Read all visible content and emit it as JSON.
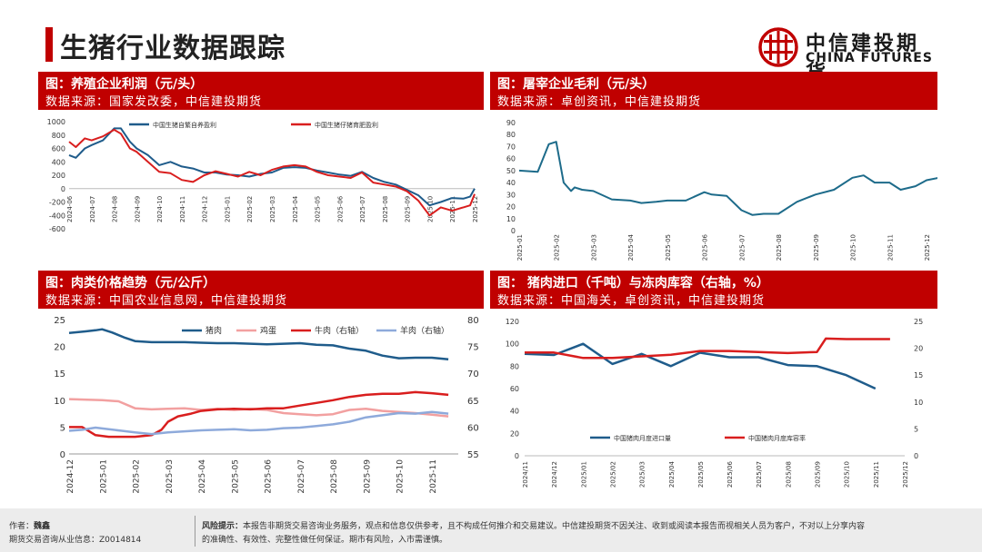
{
  "page": {
    "title": "生猪行业数据跟踪"
  },
  "logo": {
    "cn": "中信建投期货",
    "en": "CHINA FUTURES"
  },
  "colors": {
    "brand_red": "#c00000",
    "navy": "#1f5c8b",
    "teal": "#1d6b8a",
    "pink": "#f2a0a0",
    "red": "#d91e1e",
    "lightblue": "#8eaadb"
  },
  "panels": [
    {
      "title": "图：养殖企业利润（元/头）",
      "source": "数据来源：国家发改委，中信建投期货"
    },
    {
      "title": "图：屠宰企业毛利（元/头）",
      "source": "数据来源：卓创资讯，中信建投期货"
    },
    {
      "title": "图：肉类价格趋势（元/公斤）",
      "source": "数据来源：中国农业信息网，中信建投期货"
    },
    {
      "title": "图： 猪肉进口（千吨）与冻肉库容（右轴，%）",
      "source": "数据来源：中国海关，卓创资讯，中信建投期货"
    }
  ],
  "footer": {
    "author_label": "作者：",
    "author_name": "魏鑫",
    "license": "期货交易咨询从业信息：Z0014814",
    "risk_label": "风险提示：",
    "risk_text_1": "本报告非期货交易咨询业务服务，观点和信息仅供参考，且不构成任何推介和交易建议。中信建投期货不因关注、收到或阅读本报告而视相关人员为客户，不对以上分享内容",
    "risk_text_2": "的准确性、有效性、完整性做任何保证。期市有风险，入市需谨慎。"
  },
  "chart_data": [
    {
      "type": "line",
      "x_ticks": [
        "2024-06",
        "2024-07",
        "2024-08",
        "2024-09",
        "2024-10",
        "2024-11",
        "2024-12",
        "2025-01",
        "2025-02",
        "2025-03",
        "2025-04",
        "2025-05",
        "2025-06",
        "2025-07",
        "2025-08",
        "2025-09",
        "2025-10",
        "2025-11",
        "2025-12"
      ],
      "y_ticks": [
        1000,
        800,
        600,
        400,
        200,
        0,
        -200,
        -400,
        -600
      ],
      "ylim": [
        -600,
        1000
      ],
      "series": [
        {
          "name": "中国生猪自繁自养盈利",
          "color": "#1f5c8b",
          "x": [
            0,
            0.3,
            0.7,
            1,
            1.5,
            2,
            2.3,
            2.7,
            3,
            3.5,
            4,
            4.5,
            5,
            5.5,
            6,
            6.5,
            7,
            7.5,
            8,
            8.5,
            9,
            9.5,
            10,
            10.5,
            11,
            11.5,
            12,
            12.5,
            13,
            13.5,
            14,
            14.5,
            15,
            15.5,
            16,
            16.5,
            17,
            17.5,
            17.8,
            18
          ],
          "values": [
            500,
            460,
            600,
            650,
            720,
            900,
            900,
            700,
            600,
            500,
            350,
            400,
            330,
            300,
            240,
            240,
            210,
            200,
            180,
            220,
            240,
            310,
            320,
            310,
            270,
            240,
            210,
            190,
            250,
            160,
            100,
            60,
            -20,
            -100,
            -250,
            -200,
            -140,
            -150,
            -120,
            0
          ]
        },
        {
          "name": "中国生猪仔猪育肥盈利",
          "color": "#d91e1e",
          "x": [
            0,
            0.3,
            0.7,
            1,
            1.5,
            2,
            2.3,
            2.7,
            3,
            3.5,
            4,
            4.5,
            5,
            5.5,
            6,
            6.5,
            7,
            7.5,
            8,
            8.5,
            9,
            9.5,
            10,
            10.5,
            11,
            11.5,
            12,
            12.5,
            13,
            13.5,
            14,
            14.5,
            15,
            15.5,
            16,
            16.5,
            17,
            17.5,
            17.8,
            18
          ],
          "values": [
            700,
            620,
            750,
            720,
            780,
            880,
            820,
            600,
            550,
            400,
            250,
            230,
            130,
            100,
            200,
            260,
            220,
            180,
            250,
            200,
            280,
            330,
            350,
            330,
            250,
            200,
            180,
            160,
            240,
            90,
            60,
            30,
            -40,
            -180,
            -400,
            -280,
            -330,
            -280,
            -250,
            -80
          ]
        }
      ]
    },
    {
      "type": "line",
      "x_ticks": [
        "2025-01",
        "2025-02",
        "2025-03",
        "2025-04",
        "2025-05",
        "2025-06",
        "2025-07",
        "2025-08",
        "2025-09",
        "2025-10",
        "2025-11",
        "2025-12"
      ],
      "y_ticks": [
        90,
        80,
        70,
        60,
        50,
        40,
        30,
        20,
        10,
        0
      ],
      "ylim": [
        0,
        90
      ],
      "series": [
        {
          "name": "",
          "color": "#1d6b8a",
          "x": [
            0,
            0.5,
            0.8,
            1,
            1.2,
            1.4,
            1.5,
            1.7,
            2,
            2.5,
            3,
            3.3,
            3.7,
            4,
            4.5,
            5,
            5.2,
            5.6,
            6,
            6.3,
            6.6,
            7,
            7.5,
            8,
            8.5,
            9,
            9.3,
            9.6,
            10,
            10.3,
            10.7,
            11,
            11.5,
            11.8,
            12
          ],
          "values": [
            50,
            49,
            72,
            74,
            40,
            33,
            36,
            34,
            33,
            26,
            25,
            23,
            24,
            25,
            25,
            32,
            30,
            29,
            17,
            13,
            14,
            14,
            24,
            30,
            34,
            44,
            46,
            40,
            40,
            34,
            37,
            42,
            45,
            52,
            48
          ]
        }
      ]
    },
    {
      "type": "line",
      "x_ticks": [
        "2024-12",
        "2025-01",
        "2025-02",
        "2025-03",
        "2025-04",
        "2025-05",
        "2025-06",
        "2025-07",
        "2025-08",
        "2025-09",
        "2025-10",
        "2025-11"
      ],
      "y_left_ticks": [
        25,
        20,
        15,
        10,
        5,
        0
      ],
      "y_right_ticks": [
        80,
        75,
        70,
        65,
        60,
        55
      ],
      "ylim_left": [
        0,
        25
      ],
      "ylim_right": [
        55,
        80
      ],
      "series": [
        {
          "name": "猪肉",
          "axis": "left",
          "color": "#1f5c8b",
          "x": [
            0,
            0.5,
            0.8,
            1,
            1.3,
            1.7,
            2,
            2.5,
            3,
            3.5,
            4,
            4.5,
            5,
            5.5,
            6,
            6.5,
            7,
            7.5,
            8,
            8.5,
            9,
            9.5,
            10,
            10.5,
            11,
            11.5
          ],
          "values": [
            22.5,
            22.8,
            23,
            23.2,
            22.6,
            21.6,
            21,
            20.8,
            20.8,
            20.8,
            20.7,
            20.6,
            20.6,
            20.5,
            20.4,
            20.5,
            20.6,
            20.3,
            20.2,
            19.6,
            19.2,
            18.3,
            17.8,
            17.9,
            17.9,
            17.6
          ]
        },
        {
          "name": "鸡蛋",
          "axis": "left",
          "color": "#f2a0a0",
          "x": [
            0,
            1,
            1.5,
            2,
            2.5,
            3,
            3.5,
            4,
            4.5,
            5,
            5.5,
            6,
            6.5,
            7,
            7.5,
            8,
            8.5,
            9,
            9.5,
            10,
            10.5,
            11,
            11.5
          ],
          "values": [
            10.2,
            10,
            9.8,
            8.5,
            8.3,
            8.4,
            8.5,
            8.2,
            8.4,
            8.2,
            8.4,
            8.2,
            7.6,
            7.4,
            7.2,
            7.4,
            8.2,
            8.4,
            8.0,
            7.8,
            7.6,
            7.3,
            7.0
          ]
        },
        {
          "name": "牛肉（右轴）",
          "axis": "right",
          "color": "#d91e1e",
          "x": [
            0,
            0.4,
            0.8,
            1.2,
            2,
            2.5,
            2.8,
            3,
            3.3,
            3.7,
            4,
            4.5,
            5,
            5.5,
            6,
            6.5,
            7,
            7.5,
            8,
            8.5,
            9,
            9.5,
            10,
            10.5,
            11,
            11.5
          ],
          "values": [
            60,
            60,
            58.5,
            58.2,
            58.2,
            58.5,
            59.5,
            61,
            62,
            62.5,
            63,
            63.3,
            63.4,
            63.3,
            63.5,
            63.5,
            64,
            64.5,
            65,
            65.6,
            66,
            66.2,
            66.2,
            66.5,
            66.3,
            66
          ]
        },
        {
          "name": "羊肉（右轴）",
          "axis": "right",
          "color": "#8eaadb",
          "x": [
            0,
            0.4,
            0.8,
            1.2,
            1.6,
            2,
            2.5,
            3,
            3.5,
            4,
            4.5,
            5,
            5.5,
            6,
            6.5,
            7,
            7.5,
            8,
            8.5,
            9,
            9.5,
            10,
            10.5,
            11,
            11.5
          ],
          "values": [
            59.3,
            59.5,
            59.9,
            59.6,
            59.3,
            59.0,
            58.7,
            59.0,
            59.2,
            59.4,
            59.5,
            59.6,
            59.4,
            59.5,
            59.8,
            59.9,
            60.2,
            60.5,
            61,
            61.8,
            62.2,
            62.6,
            62.5,
            62.8,
            62.5
          ]
        }
      ]
    },
    {
      "type": "line",
      "x_ticks": [
        "2024/11",
        "2024/12",
        "2025/01",
        "2025/02",
        "2025/03",
        "2025/04",
        "2025/05",
        "2025/06",
        "2025/07",
        "2025/08",
        "2025/09",
        "2025/10",
        "2025/11",
        "2025/12"
      ],
      "y_left_ticks": [
        120,
        100,
        80,
        60,
        40,
        20,
        0
      ],
      "y_right_ticks": [
        25,
        20,
        15,
        10,
        5,
        0
      ],
      "ylim_left": [
        0,
        120
      ],
      "ylim_right": [
        0,
        25
      ],
      "series": [
        {
          "name": "中国猪肉月度进口量",
          "axis": "left",
          "color": "#1f5c8b",
          "x": [
            0,
            1,
            2,
            3,
            4,
            5,
            6,
            7,
            8,
            9,
            10,
            11,
            12
          ],
          "values": [
            91,
            90,
            100,
            82,
            91,
            80,
            92,
            88,
            88,
            81,
            80,
            72,
            60
          ]
        },
        {
          "name": "中国猪肉月度库容率",
          "axis": "right",
          "color": "#d91e1e",
          "x": [
            0,
            1,
            2,
            3,
            4,
            5,
            6,
            7,
            8,
            9,
            10,
            10.3,
            11,
            12,
            12.5
          ],
          "values": [
            19.2,
            19.2,
            18.2,
            18.2,
            18.5,
            18.8,
            19.5,
            19.5,
            19.3,
            19.1,
            19.3,
            21.8,
            21.7,
            21.7,
            21.7
          ]
        }
      ]
    }
  ]
}
